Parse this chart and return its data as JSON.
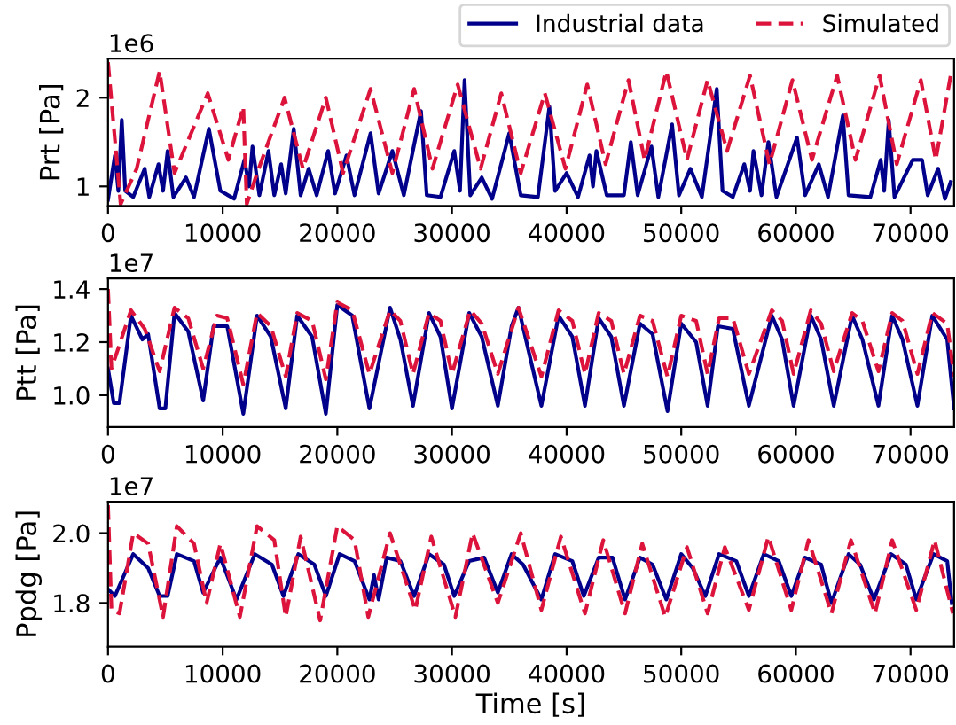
{
  "chart_data": [
    {
      "type": "line",
      "ylabel": "Prt [Pa]",
      "annotations": [
        "1e6"
      ],
      "legend": "top right",
      "xlim": [
        0,
        73800
      ],
      "xticks": [
        0,
        10000,
        20000,
        30000,
        40000,
        50000,
        60000,
        70000
      ],
      "ylim": [
        0.78,
        2.44
      ],
      "yticks": [
        1,
        2
      ],
      "series": [
        {
          "name": "Industrial data",
          "color": "#00008b",
          "line_style": "solid",
          "x": [
            0,
            600,
            900,
            1200,
            1500,
            2200,
            3200,
            3600,
            4400,
            4800,
            5200,
            5700,
            6800,
            7500,
            8800,
            9800,
            11000,
            11900,
            12300,
            12600,
            13200,
            14000,
            14500,
            15100,
            15500,
            16200,
            16800,
            17500,
            18200,
            19200,
            19800,
            20800,
            21500,
            22900,
            23600,
            24800,
            25800,
            27300,
            27800,
            29000,
            30200,
            30700,
            31100,
            31600,
            32600,
            33500,
            35000,
            36000,
            37500,
            38500,
            39000,
            40000,
            41000,
            42000,
            42300,
            42600,
            43500,
            45000,
            45600,
            46200,
            47400,
            48000,
            49200,
            49800,
            50800,
            51800,
            53100,
            53600,
            54500,
            55500,
            56000,
            56300,
            57000,
            57600,
            58300,
            60100,
            60800,
            62000,
            62800,
            64100,
            64600,
            66500,
            67400,
            67700,
            68100,
            68600,
            70200,
            71000,
            71500,
            72400,
            73000,
            73500
          ],
          "values": [
            0.85,
            1.35,
            0.95,
            1.75,
            0.95,
            0.88,
            1.2,
            0.88,
            1.25,
            0.95,
            1.4,
            0.88,
            1.1,
            0.88,
            1.65,
            0.95,
            0.86,
            1.3,
            1.0,
            1.45,
            0.9,
            1.4,
            0.9,
            1.25,
            0.92,
            1.65,
            0.9,
            1.2,
            0.9,
            1.4,
            0.92,
            1.35,
            0.9,
            1.6,
            0.92,
            1.4,
            0.9,
            1.85,
            0.9,
            0.88,
            1.4,
            0.95,
            2.2,
            0.9,
            1.1,
            0.86,
            1.6,
            0.9,
            0.88,
            1.9,
            0.95,
            1.15,
            0.88,
            1.35,
            1.0,
            1.4,
            0.9,
            0.9,
            1.5,
            0.9,
            1.45,
            0.88,
            1.7,
            0.9,
            1.2,
            0.88,
            2.1,
            0.95,
            0.88,
            1.25,
            0.95,
            1.4,
            0.9,
            1.5,
            0.88,
            1.55,
            0.9,
            1.25,
            0.88,
            1.8,
            0.9,
            0.88,
            1.3,
            0.95,
            1.75,
            0.88,
            1.3,
            1.3,
            0.9,
            1.2,
            0.86,
            1.05
          ]
        },
        {
          "name": "Simulated",
          "color": "#dc143c",
          "line_style": "dashed",
          "x": [
            0,
            1100,
            2500,
            4500,
            5800,
            8700,
            10500,
            11800,
            12100,
            13000,
            15400,
            17000,
            19000,
            20500,
            22900,
            24800,
            26700,
            28300,
            30500,
            32500,
            34300,
            36000,
            38100,
            39900,
            41800,
            43400,
            45400,
            46800,
            48700,
            50500,
            52300,
            54000,
            56000,
            57700,
            59700,
            61400,
            63600,
            65200,
            67300,
            68800,
            70900,
            72200,
            73500
          ],
          "values": [
            2.4,
            0.8,
            1.2,
            2.3,
            1.15,
            2.05,
            1.3,
            1.9,
            0.8,
            1.15,
            2.0,
            1.2,
            2.0,
            1.15,
            2.1,
            1.15,
            2.1,
            1.2,
            2.15,
            1.2,
            2.05,
            1.15,
            2.05,
            1.2,
            2.15,
            1.25,
            2.2,
            1.3,
            2.3,
            1.3,
            2.2,
            1.4,
            2.25,
            1.25,
            2.2,
            1.3,
            2.25,
            1.3,
            2.25,
            1.25,
            2.2,
            1.3,
            2.25
          ]
        }
      ]
    },
    {
      "type": "line",
      "ylabel": "Ptt [Pa]",
      "annotations": [
        "1e7"
      ],
      "xlim": [
        0,
        73800
      ],
      "xticks": [
        0,
        10000,
        20000,
        30000,
        40000,
        50000,
        60000,
        70000
      ],
      "ylim": [
        0.88,
        1.44
      ],
      "yticks": [
        {
          "value": 1.0,
          "label": "1.0"
        },
        1.2,
        1.4
      ],
      "series": [
        {
          "color": "#00008b",
          "line_style": "solid",
          "x": [
            0,
            500,
            1000,
            2000,
            3000,
            3500,
            4500,
            5000,
            5800,
            7000,
            8300,
            9200,
            10400,
            11800,
            13000,
            14200,
            15500,
            16500,
            17800,
            19000,
            20000,
            21300,
            22800,
            24600,
            25500,
            26600,
            28000,
            29000,
            30000,
            31500,
            32600,
            34000,
            35200,
            35800,
            37800,
            39300,
            40500,
            41600,
            42800,
            43900,
            45000,
            46400,
            47500,
            48800,
            50000,
            51300,
            52300,
            53200,
            54500,
            55900,
            57900,
            58800,
            59800,
            61300,
            62200,
            63300,
            64900,
            65800,
            67200,
            68400,
            69300,
            70600,
            71900,
            73200,
            73800
          ],
          "values": [
            1.1,
            0.97,
            0.97,
            1.3,
            1.21,
            1.23,
            0.95,
            0.95,
            1.31,
            1.24,
            0.98,
            1.26,
            1.26,
            0.93,
            1.3,
            1.22,
            0.95,
            1.3,
            1.22,
            0.93,
            1.34,
            1.3,
            0.95,
            1.33,
            1.21,
            0.96,
            1.31,
            1.22,
            0.95,
            1.31,
            1.22,
            0.96,
            1.26,
            1.33,
            0.96,
            1.3,
            1.22,
            0.96,
            1.29,
            1.22,
            0.96,
            1.27,
            1.23,
            0.94,
            1.27,
            1.2,
            0.96,
            1.26,
            1.25,
            0.96,
            1.3,
            1.21,
            0.96,
            1.3,
            1.21,
            0.96,
            1.3,
            1.21,
            0.96,
            1.3,
            1.21,
            0.96,
            1.3,
            1.21,
            0.95
          ]
        },
        {
          "color": "#dc143c",
          "line_style": "dashed",
          "x": [
            0,
            300,
            2000,
            3200,
            4500,
            5800,
            7000,
            8300,
            9500,
            10400,
            11800,
            13000,
            14200,
            15500,
            16500,
            17800,
            19000,
            20000,
            21300,
            22800,
            24600,
            25500,
            26600,
            28000,
            29000,
            30000,
            31600,
            32600,
            34000,
            35800,
            37800,
            39300,
            40500,
            41600,
            42800,
            43900,
            45000,
            46400,
            47500,
            48800,
            50000,
            51300,
            52300,
            53300,
            54500,
            55900,
            57900,
            58800,
            59800,
            61300,
            62200,
            63300,
            64900,
            65800,
            67200,
            68400,
            69300,
            70600,
            71900,
            73200,
            73800
          ],
          "values": [
            1.4,
            1.1,
            1.32,
            1.25,
            1.09,
            1.33,
            1.29,
            1.1,
            1.3,
            1.29,
            1.04,
            1.31,
            1.26,
            1.07,
            1.31,
            1.28,
            1.06,
            1.35,
            1.32,
            1.08,
            1.32,
            1.28,
            1.08,
            1.31,
            1.28,
            1.08,
            1.32,
            1.27,
            1.08,
            1.33,
            1.07,
            1.32,
            1.28,
            1.08,
            1.31,
            1.28,
            1.08,
            1.3,
            1.28,
            1.07,
            1.3,
            1.28,
            1.08,
            1.29,
            1.29,
            1.08,
            1.32,
            1.28,
            1.08,
            1.32,
            1.27,
            1.09,
            1.31,
            1.28,
            1.09,
            1.31,
            1.28,
            1.08,
            1.31,
            1.27,
            1.07
          ]
        }
      ]
    },
    {
      "type": "line",
      "ylabel": "Ppdg [Pa]",
      "xlabel": "Time [s]",
      "annotations": [
        "1e7"
      ],
      "xlim": [
        0,
        73800
      ],
      "xticks": [
        0,
        10000,
        20000,
        30000,
        40000,
        50000,
        60000,
        70000
      ],
      "ylim": [
        1.675,
        2.09
      ],
      "yticks": [
        1.8,
        {
          "value": 2.0,
          "label": "2.0"
        }
      ],
      "series": [
        {
          "color": "#00008b",
          "line_style": "solid",
          "x": [
            0,
            600,
            2200,
            3500,
            4500,
            5200,
            6000,
            7500,
            8300,
            9800,
            11200,
            12800,
            14300,
            15300,
            16600,
            18000,
            19000,
            20200,
            21500,
            22800,
            23200,
            23600,
            24300,
            25500,
            26700,
            28000,
            29300,
            30200,
            31500,
            32800,
            34000,
            35200,
            36200,
            37800,
            39000,
            40500,
            41500,
            42800,
            44000,
            45100,
            46400,
            47500,
            48700,
            50000,
            51000,
            52100,
            53300,
            54800,
            55900,
            57200,
            58500,
            59600,
            60800,
            62200,
            63100,
            64600,
            65600,
            66800,
            68300,
            69600,
            70500,
            72000,
            73200,
            73600
          ],
          "values": [
            1.84,
            1.82,
            1.94,
            1.9,
            1.82,
            1.82,
            1.94,
            1.92,
            1.83,
            1.93,
            1.81,
            1.94,
            1.91,
            1.82,
            1.94,
            1.91,
            1.82,
            1.94,
            1.92,
            1.81,
            1.88,
            1.81,
            1.93,
            1.92,
            1.82,
            1.94,
            1.91,
            1.82,
            1.92,
            1.93,
            1.83,
            1.94,
            1.91,
            1.81,
            1.94,
            1.92,
            1.82,
            1.93,
            1.93,
            1.81,
            1.93,
            1.91,
            1.81,
            1.94,
            1.9,
            1.82,
            1.94,
            1.92,
            1.82,
            1.94,
            1.92,
            1.82,
            1.93,
            1.91,
            1.8,
            1.94,
            1.91,
            1.81,
            1.94,
            1.91,
            1.81,
            1.94,
            1.92,
            1.8
          ]
        },
        {
          "color": "#dc143c",
          "line_style": "dashed",
          "x": [
            0,
            300,
            1000,
            2200,
            3500,
            4800,
            6000,
            7500,
            8600,
            9800,
            11500,
            13000,
            14500,
            15500,
            16800,
            18500,
            20000,
            21500,
            22700,
            24600,
            26800,
            28200,
            30300,
            31800,
            34000,
            36000,
            37800,
            39500,
            41600,
            43200,
            45100,
            46600,
            48600,
            50500,
            52300,
            53800,
            55900,
            57600,
            59600,
            61100,
            63100,
            64800,
            66900,
            68400,
            70500,
            72100,
            73700
          ],
          "values": [
            2.08,
            1.78,
            1.77,
            2.0,
            1.97,
            1.76,
            2.02,
            1.97,
            1.8,
            1.97,
            1.76,
            2.02,
            1.98,
            1.76,
            1.99,
            1.75,
            2.02,
            1.98,
            1.76,
            2.0,
            1.78,
            1.99,
            1.76,
            2.0,
            1.8,
            2.0,
            1.78,
            1.99,
            1.77,
            1.98,
            1.77,
            1.97,
            1.76,
            1.96,
            1.77,
            1.96,
            1.78,
            1.99,
            1.78,
            1.98,
            1.77,
            1.98,
            1.77,
            1.98,
            1.78,
            1.98,
            1.77
          ]
        }
      ]
    }
  ]
}
